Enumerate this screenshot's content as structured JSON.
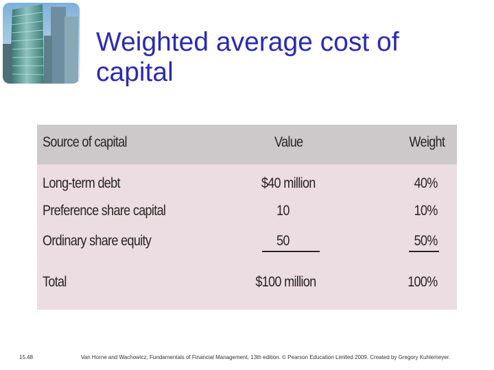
{
  "slide": {
    "title_line1": "Weighted average cost of",
    "title_line2": "capital",
    "slide_number": "15.48",
    "footer": "Van Horne and Wachowicz, Fundamentals of Financial Management, 13th edition. © Pearson Education Limited 2009. Created by Gregory Kuhlemeyer."
  },
  "table": {
    "headers": [
      "Source of capital",
      "Value",
      "Weight"
    ],
    "rows": [
      {
        "source": "Long-term debt",
        "value": "$40 million",
        "weight": "40%"
      },
      {
        "source": "Preference share capital",
        "value": "10",
        "weight": "10%"
      },
      {
        "source": "Ordinary share equity",
        "value": "50",
        "weight": "50%"
      },
      {
        "source": "Total",
        "value": "$100 million",
        "weight": "100%"
      }
    ]
  },
  "colors": {
    "title": "#2a2ab5",
    "table_header_bg": "#cdc8ca",
    "table_body_bg": "#ebdde2"
  },
  "logo": {
    "icon": "skyscraper-photo-icon"
  }
}
